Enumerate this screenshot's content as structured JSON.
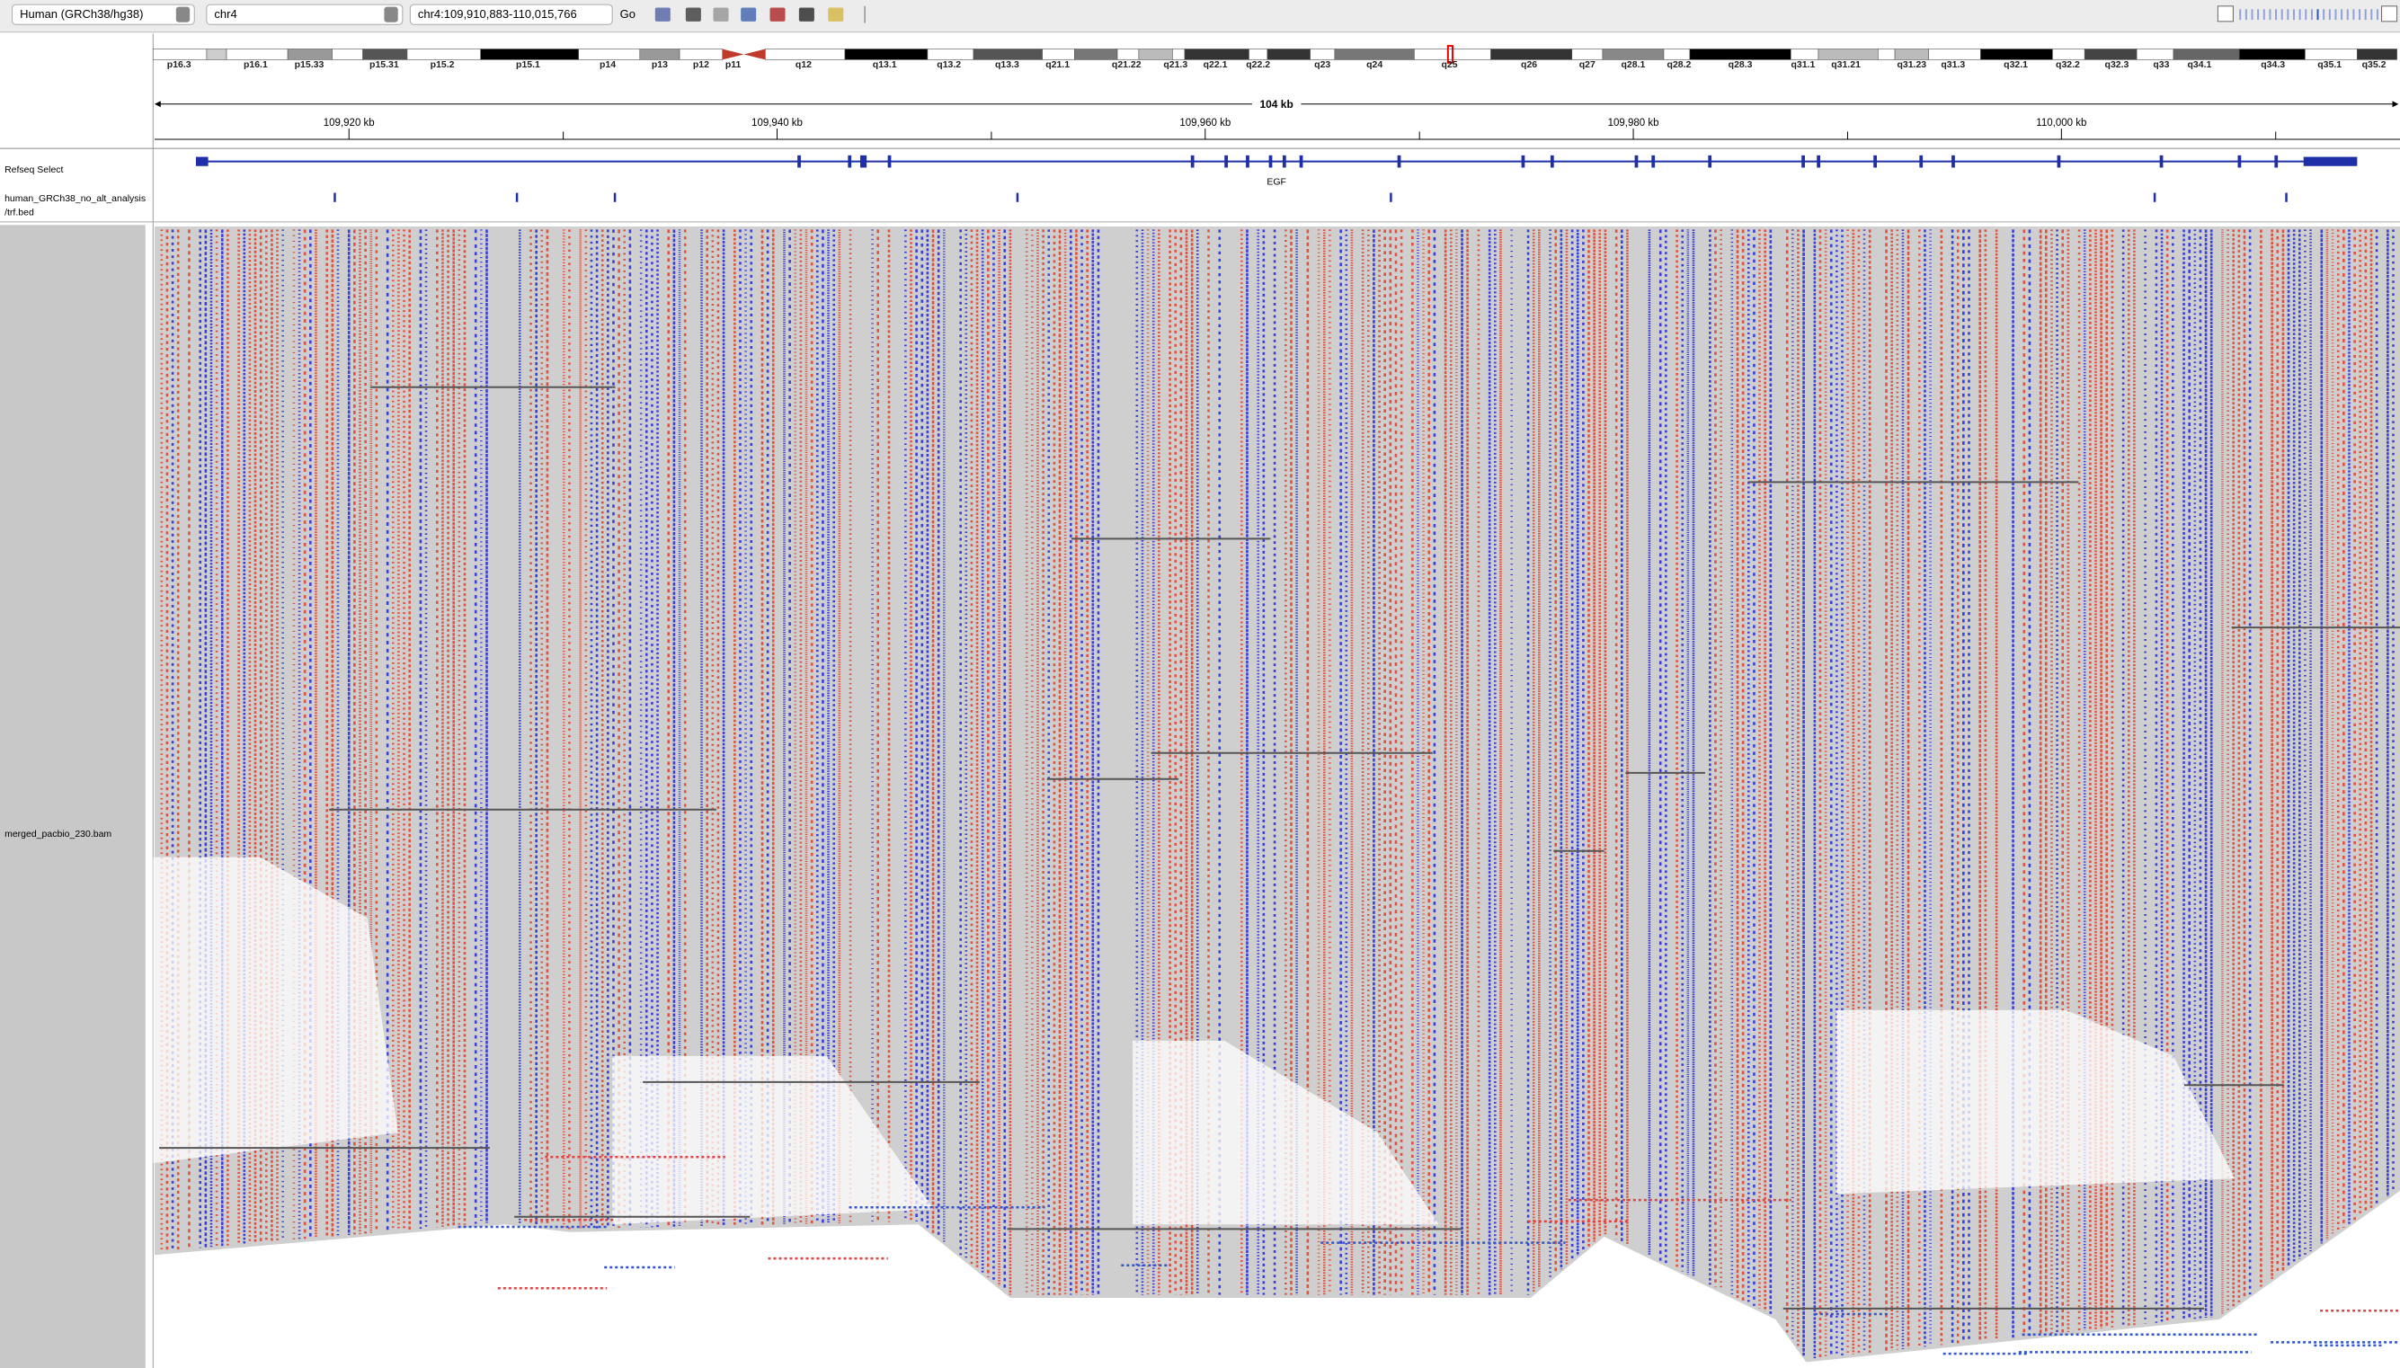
{
  "toolbar": {
    "genome": "Human (GRCh38/hg38)",
    "chromosome": "chr4",
    "locus": "chr4:109,910,883-110,015,766",
    "go": "Go"
  },
  "ideogram": {
    "bands": [
      "p16.3",
      "p16.1",
      "p15.33",
      "p15.31",
      "p15.2",
      "p15.1",
      "p14",
      "p13",
      "p12",
      "p11",
      "q12",
      "q13.1",
      "q13.2",
      "q13.3",
      "q21.1",
      "q21.22",
      "q21.3",
      "q22.1",
      "q22.2",
      "q23",
      "q24",
      "q25",
      "q26",
      "q27",
      "q28.1",
      "q28.2",
      "q28.3",
      "q31.1",
      "q31.21",
      "q31.23",
      "q31.3",
      "q32.1",
      "q32.2",
      "q32.3",
      "q33",
      "q34.1",
      "q34.3",
      "q35.1",
      "q35.2"
    ]
  },
  "ruler": {
    "span": "104 kb",
    "ticks": [
      "109,920 kb",
      "109,940 kb",
      "109,960 kb",
      "109,980 kb",
      "110,000 kb"
    ]
  },
  "tracks": {
    "refseq": {
      "name": "Refseq Select",
      "gene": "EGF"
    },
    "bed": {
      "name_lines": [
        "human_GRCh38_no_alt_analysis",
        "/trf.bed"
      ]
    },
    "bam": {
      "name": "merged_pacbio_230.bam"
    }
  }
}
